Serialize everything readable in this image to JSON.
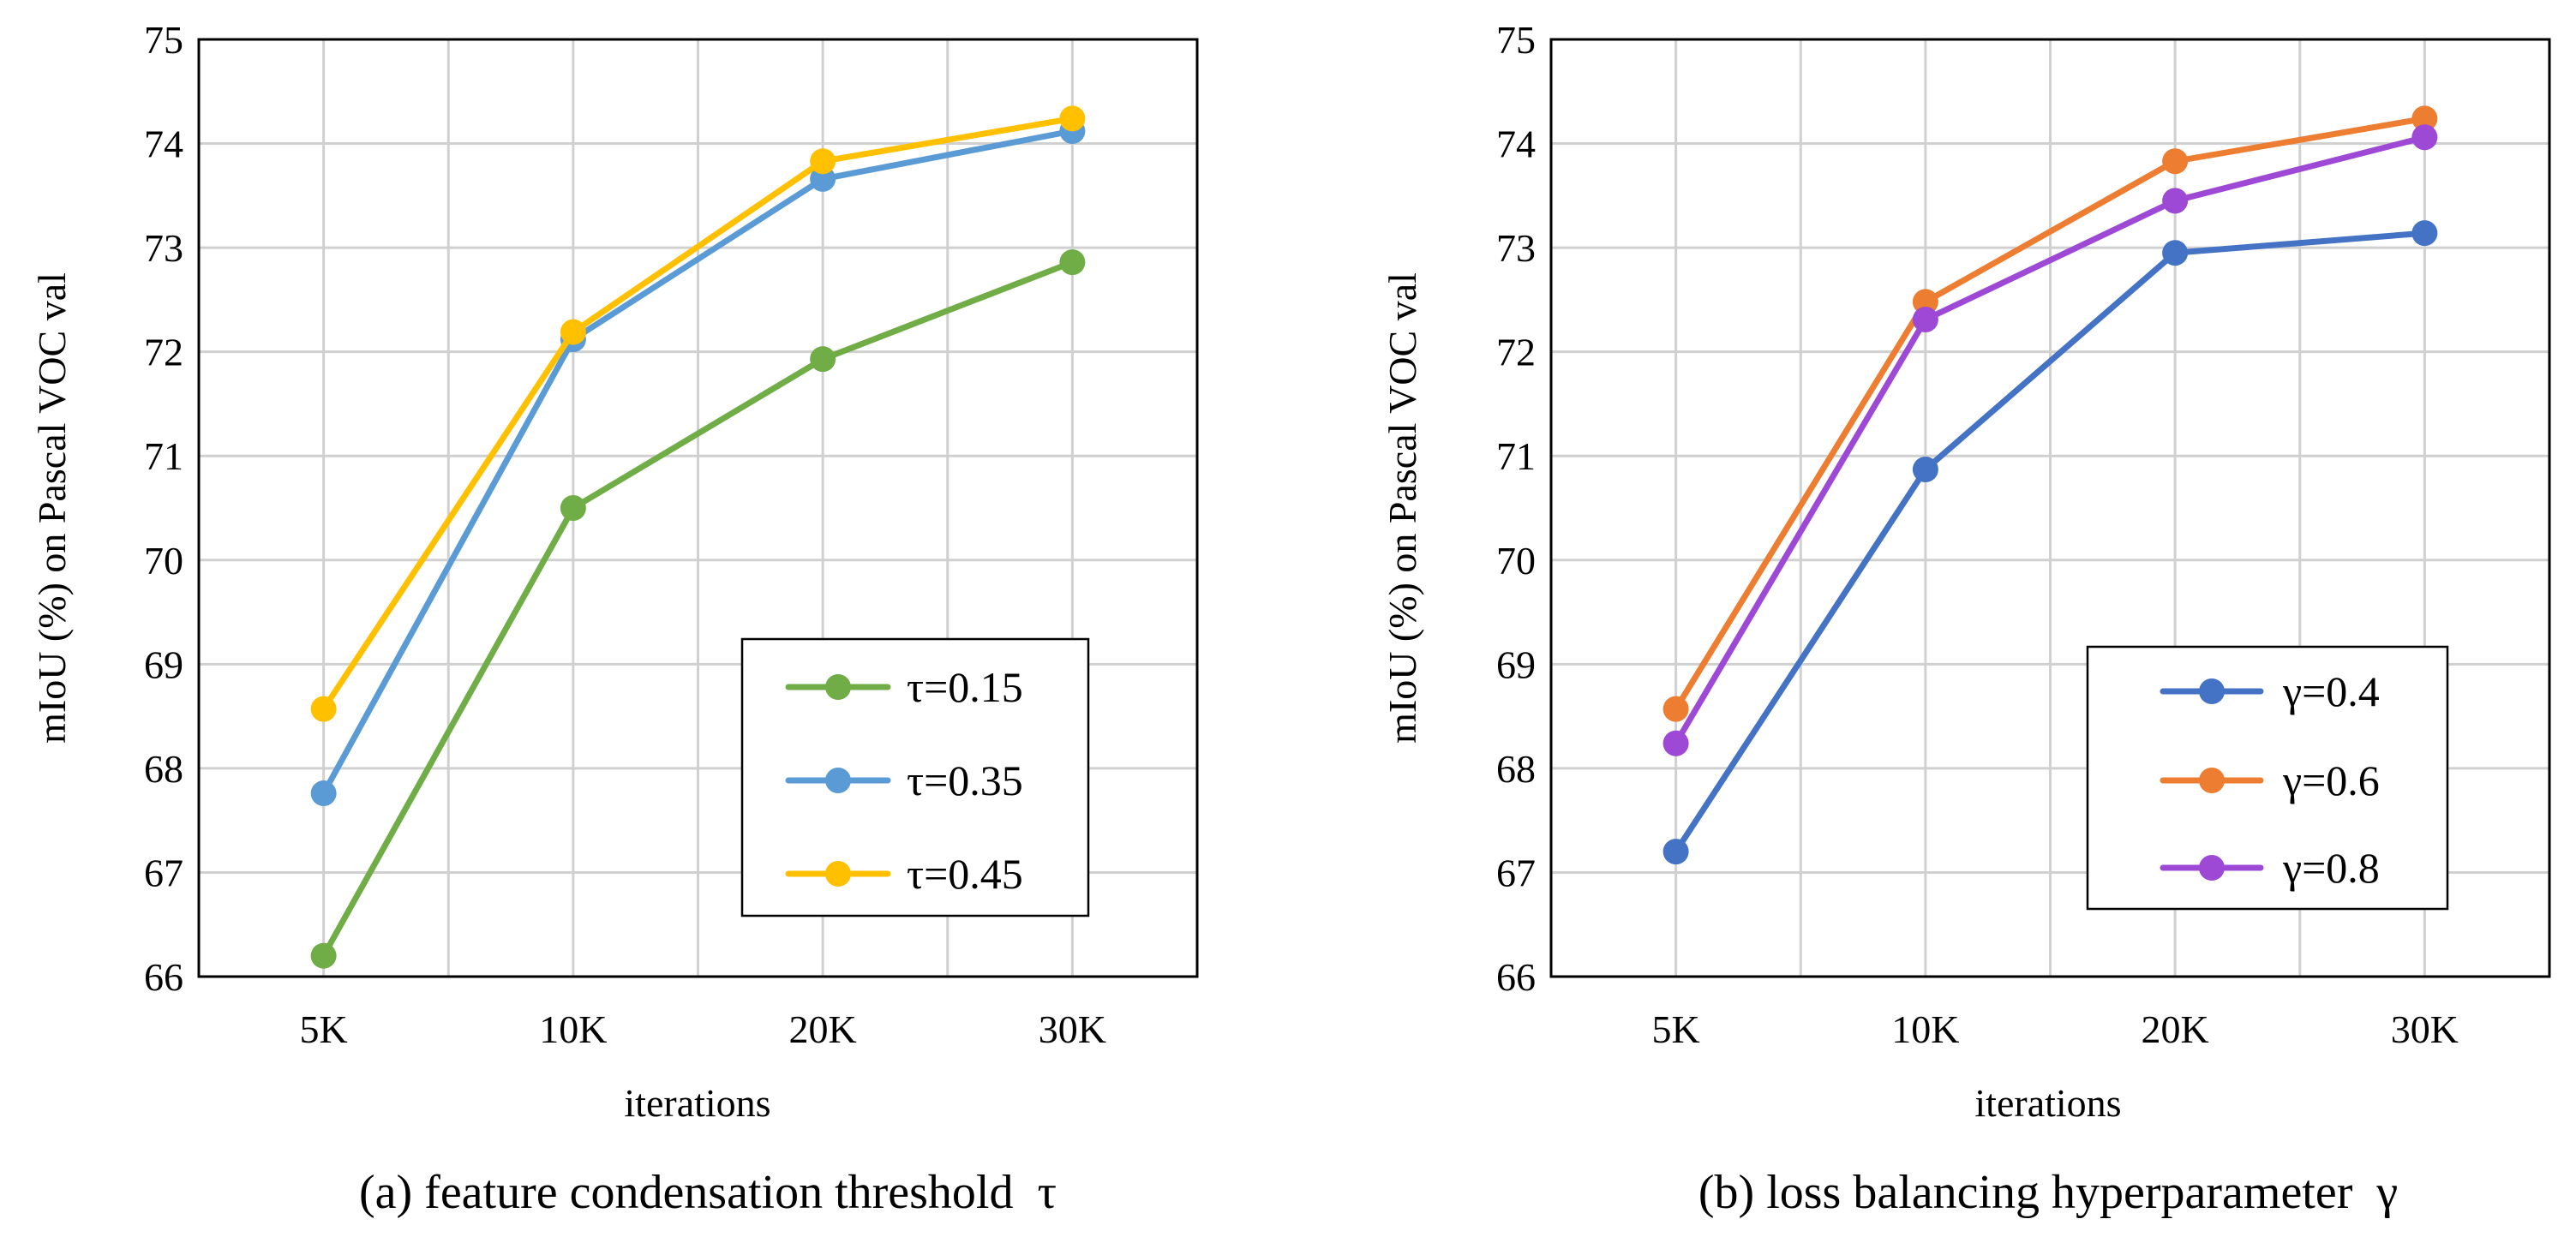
{
  "chart_data": [
    {
      "type": "line",
      "caption": "(a) feature condensation threshold  τ",
      "xlabel": "iterations",
      "ylabel": "mIoU (%) on Pascal VOC val",
      "categories": [
        "5K",
        "10K",
        "20K",
        "30K"
      ],
      "ylim": [
        66,
        75
      ],
      "yticks": [
        66,
        67,
        68,
        69,
        70,
        71,
        72,
        73,
        74,
        75
      ],
      "grid": true,
      "legend_position": "bottom-right",
      "series": [
        {
          "name": "τ=0.15",
          "color": "#70AD47",
          "values": [
            66.2,
            70.5,
            71.93,
            72.86
          ]
        },
        {
          "name": "τ=0.35",
          "color": "#5B9BD5",
          "values": [
            67.76,
            72.12,
            73.66,
            74.12
          ]
        },
        {
          "name": "τ=0.45",
          "color": "#FFC000",
          "values": [
            68.57,
            72.19,
            73.83,
            74.24
          ]
        }
      ]
    },
    {
      "type": "line",
      "caption": "(b) loss balancing hyperparameter  γ",
      "xlabel": "iterations",
      "ylabel": "mIoU (%) on Pascal VOC val",
      "categories": [
        "5K",
        "10K",
        "20K",
        "30K"
      ],
      "ylim": [
        66,
        75
      ],
      "yticks": [
        66,
        67,
        68,
        69,
        70,
        71,
        72,
        73,
        74,
        75
      ],
      "grid": true,
      "legend_position": "bottom-right",
      "series": [
        {
          "name": "γ=0.4",
          "color": "#4472C4",
          "values": [
            67.2,
            70.87,
            72.95,
            73.14
          ]
        },
        {
          "name": "γ=0.6",
          "color": "#ED7D31",
          "values": [
            68.57,
            72.48,
            73.83,
            74.24
          ]
        },
        {
          "name": "γ=0.8",
          "color": "#9E48D6",
          "values": [
            68.24,
            72.31,
            73.45,
            74.06
          ]
        }
      ]
    }
  ]
}
